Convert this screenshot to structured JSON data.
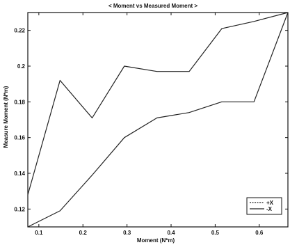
{
  "chart_data": {
    "type": "line",
    "title": "< Moment vs Measured Moment >",
    "xlabel": "Moment (N*m)",
    "ylabel": "Measure Moment (N*m)",
    "xlim": [
      0.075,
      0.665
    ],
    "ylim": [
      0.11,
      0.23
    ],
    "xticks": [
      0.1,
      0.2,
      0.3,
      0.4,
      0.5,
      0.6
    ],
    "yticks": [
      0.12,
      0.14,
      0.16,
      0.18,
      0.2,
      0.22
    ],
    "xtick_labels": [
      "0.1",
      "0.2",
      "0.3",
      "0.4",
      "0.5",
      "0.6"
    ],
    "ytick_labels": [
      "0.12",
      "0.14",
      "0.16",
      "0.18",
      "0.2",
      "0.22"
    ],
    "grid": false,
    "legend_position": "bottom-right",
    "series": [
      {
        "name": "+X",
        "color": "#222222",
        "x": [
          0.075,
          0.148,
          0.221,
          0.294,
          0.368,
          0.441,
          0.515,
          0.588,
          0.665
        ],
        "y": [
          0.128,
          0.192,
          0.171,
          0.2,
          0.197,
          0.197,
          0.221,
          0.225,
          0.23
        ]
      },
      {
        "name": "-X",
        "color": "#222222",
        "x": [
          0.075,
          0.148,
          0.221,
          0.294,
          0.368,
          0.441,
          0.515,
          0.588,
          0.665
        ],
        "y": [
          0.11,
          0.119,
          0.139,
          0.16,
          0.171,
          0.174,
          0.18,
          0.18,
          0.23
        ]
      }
    ]
  }
}
